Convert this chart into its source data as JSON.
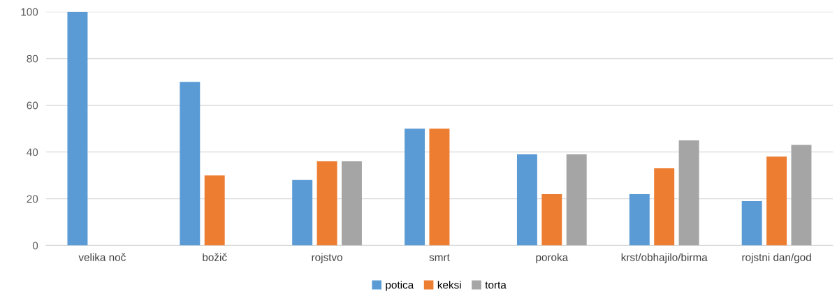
{
  "chart_data": {
    "type": "bar",
    "categories": [
      "velika noč",
      "božič",
      "rojstvo",
      "smrt",
      "poroka",
      "krst/obhajilo/birma",
      "rojstni dan/god"
    ],
    "series": [
      {
        "name": "potica",
        "color": "#5b9bd5",
        "values": [
          100,
          70,
          28,
          50,
          39,
          22,
          19
        ]
      },
      {
        "name": "keksi",
        "color": "#ed7d31",
        "values": [
          null,
          30,
          36,
          50,
          22,
          33,
          38
        ]
      },
      {
        "name": "torta",
        "color": "#a5a5a5",
        "values": [
          null,
          null,
          36,
          null,
          39,
          45,
          43
        ]
      }
    ],
    "ylim": [
      0,
      100
    ],
    "yticks": [
      0,
      20,
      40,
      60,
      80,
      100
    ],
    "grid": "y",
    "legend": "bottom"
  }
}
